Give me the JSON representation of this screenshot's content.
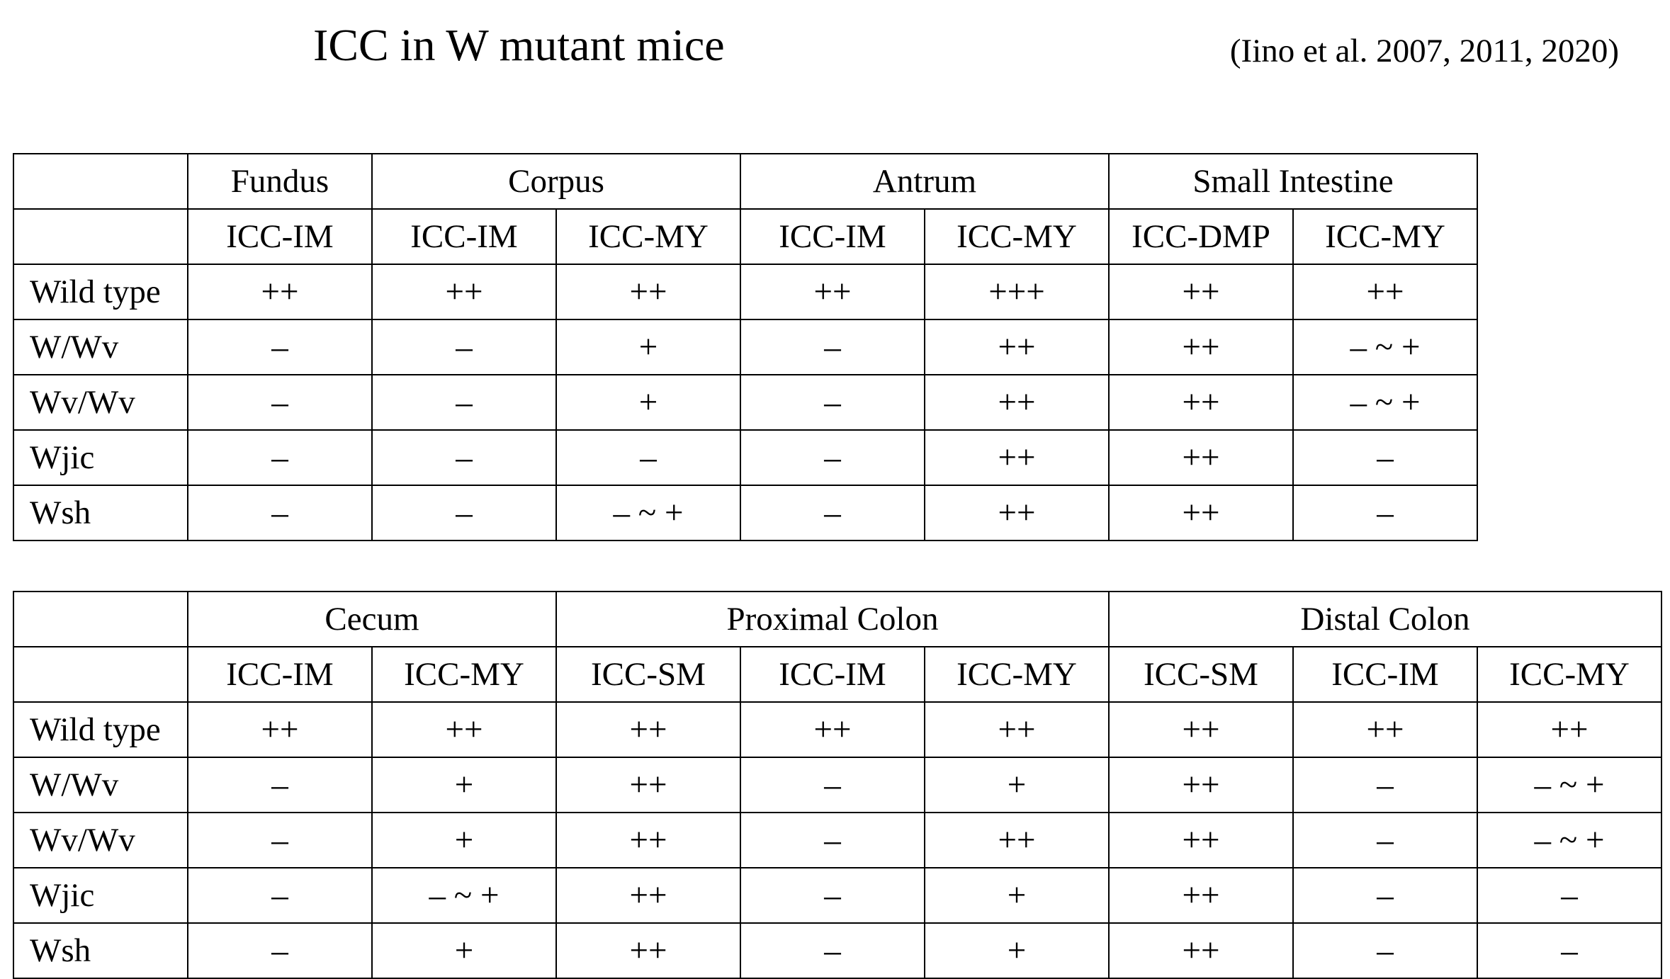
{
  "title": "ICC in W mutant mice",
  "citation": "(Iino et al. 2007, 2011, 2020)",
  "table1": {
    "regions": [
      {
        "label": "Fundus",
        "span": 1
      },
      {
        "label": "Corpus",
        "span": 2
      },
      {
        "label": "Antrum",
        "span": 2
      },
      {
        "label": "Small Intestine",
        "span": 2
      }
    ],
    "cell_types": [
      "ICC-IM",
      "ICC-IM",
      "ICC-MY",
      "ICC-IM",
      "ICC-MY",
      "ICC-DMP",
      "ICC-MY"
    ],
    "rows": [
      {
        "label": "Wild type",
        "values": [
          "++",
          "++",
          "++",
          "++",
          "+++",
          "++",
          "++"
        ]
      },
      {
        "label": "W/Wv",
        "values": [
          "–",
          "–",
          "+",
          "–",
          "++",
          "++",
          "– ~ +"
        ]
      },
      {
        "label": "Wv/Wv",
        "values": [
          "–",
          "–",
          "+",
          "–",
          "++",
          "++",
          "– ~ +"
        ]
      },
      {
        "label": "Wjic",
        "values": [
          "–",
          "–",
          "–",
          "–",
          "++",
          "++",
          "–"
        ]
      },
      {
        "label": "Wsh",
        "values": [
          "–",
          "–",
          "– ~ +",
          "–",
          "++",
          "++",
          "–"
        ]
      }
    ]
  },
  "table2": {
    "regions": [
      {
        "label": "Cecum",
        "span": 2
      },
      {
        "label": "Proximal Colon",
        "span": 3
      },
      {
        "label": "Distal Colon",
        "span": 3
      }
    ],
    "cell_types": [
      "ICC-IM",
      "ICC-MY",
      "ICC-SM",
      "ICC-IM",
      "ICC-MY",
      "ICC-SM",
      "ICC-IM",
      "ICC-MY"
    ],
    "rows": [
      {
        "label": "Wild type",
        "values": [
          "++",
          "++",
          "++",
          "++",
          "++",
          "++",
          "++",
          "++"
        ]
      },
      {
        "label": "W/Wv",
        "values": [
          "–",
          "+",
          "++",
          "–",
          "+",
          "++",
          "–",
          "– ~ +"
        ]
      },
      {
        "label": "Wv/Wv",
        "values": [
          "–",
          "+",
          "++",
          "–",
          "++",
          "++",
          "–",
          "– ~ +"
        ]
      },
      {
        "label": "Wjic",
        "values": [
          "–",
          "– ~ +",
          "++",
          "–",
          "+",
          "++",
          "–",
          "–"
        ]
      },
      {
        "label": "Wsh",
        "values": [
          "–",
          "+",
          "++",
          "–",
          "+",
          "++",
          "–",
          "–"
        ]
      }
    ]
  }
}
